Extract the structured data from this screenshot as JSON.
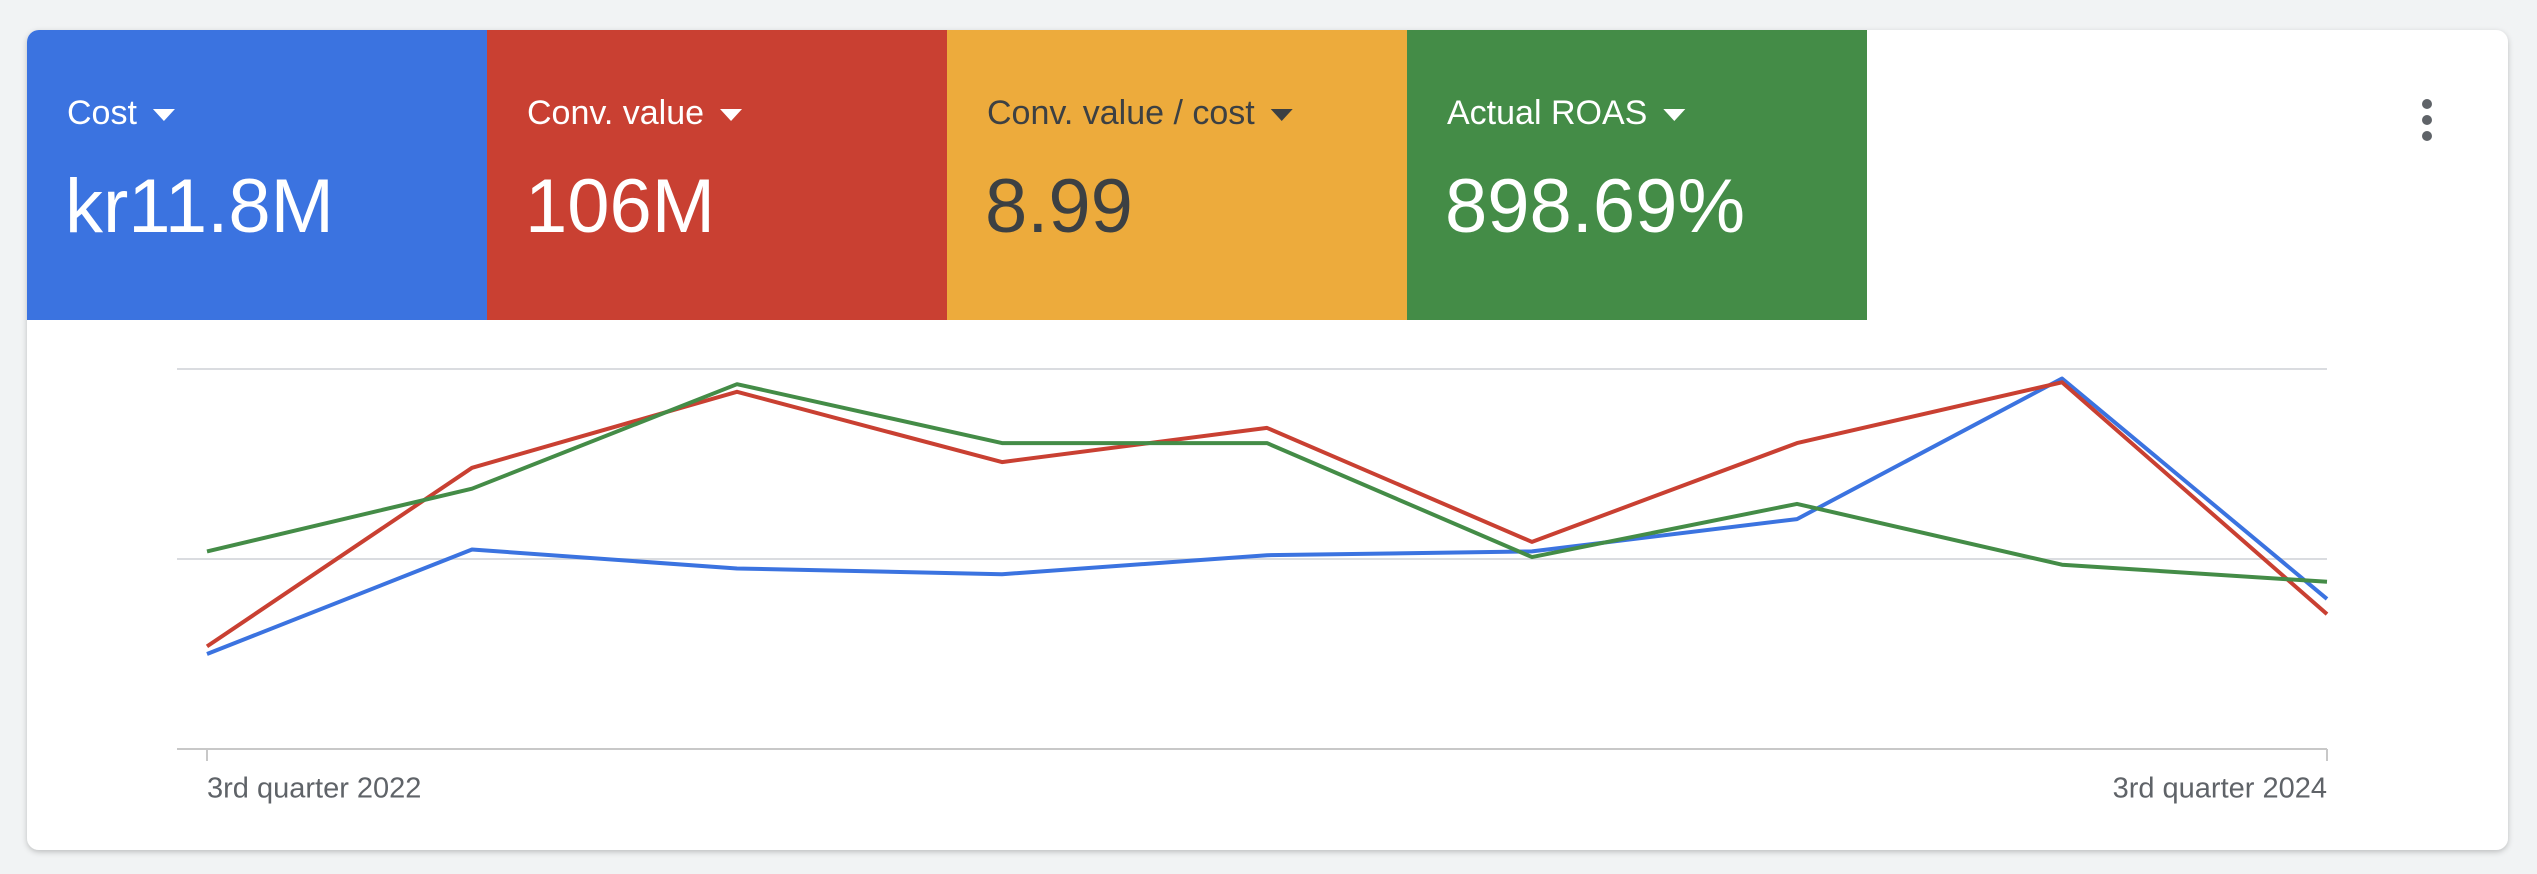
{
  "scorecards": [
    {
      "label": "Cost",
      "value": "kr11.8M",
      "color": "#3b73e0",
      "text_color": "#ffffff"
    },
    {
      "label": "Conv. value",
      "value": "106M",
      "color": "#c94032",
      "text_color": "#ffffff"
    },
    {
      "label": "Conv. value / cost",
      "value": "8.99",
      "color": "#edab3c",
      "text_color": "#3c4043"
    },
    {
      "label": "Actual ROAS",
      "value": "898.69%",
      "color": "#448c47",
      "text_color": "#ffffff"
    }
  ],
  "chart_data": {
    "type": "line",
    "categories": [
      "3rd quarter 2022",
      null,
      null,
      null,
      null,
      null,
      null,
      null,
      "3rd quarter 2024"
    ],
    "series": [
      {
        "color": "#3b73e0",
        "values": [
          0.5,
          1.05,
          0.95,
          0.92,
          1.02,
          1.04,
          1.21,
          1.95,
          0.79
        ]
      },
      {
        "color": "#c94032",
        "values": [
          0.54,
          1.48,
          1.88,
          1.51,
          1.69,
          1.09,
          1.61,
          1.93,
          0.71
        ]
      },
      {
        "color": "#448c47",
        "values": [
          1.04,
          1.37,
          1.92,
          1.61,
          1.61,
          1.01,
          1.29,
          0.97,
          0.88
        ]
      }
    ],
    "ylim": [
      0,
      2
    ],
    "yticks": [
      0,
      1,
      2
    ],
    "grid": true
  }
}
